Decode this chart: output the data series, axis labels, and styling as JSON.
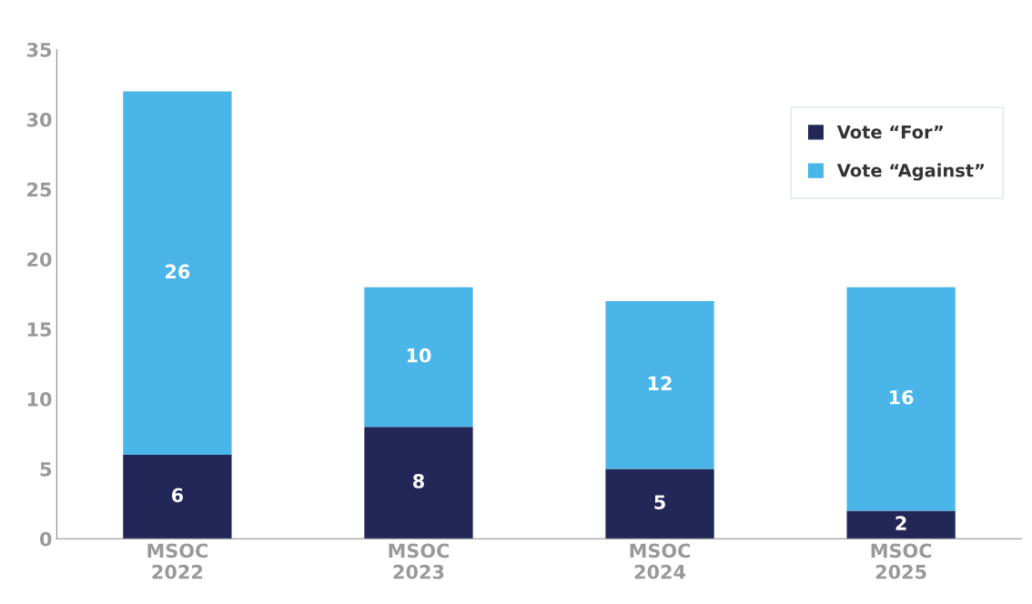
{
  "chart_data": {
    "type": "bar",
    "stacked": true,
    "categories": [
      "MSOC\n2022",
      "MSOC\n2023",
      "MSOC\n2024",
      "MSOC\n2025"
    ],
    "series": [
      {
        "name": "Vote “For”",
        "color": "#232757",
        "values": [
          6,
          8,
          5,
          2
        ]
      },
      {
        "name": "Vote “Against”",
        "color": "#4ab5e8",
        "values": [
          26,
          10,
          12,
          16
        ]
      }
    ],
    "ylim": [
      0,
      35
    ],
    "yticks": [
      0,
      5,
      10,
      15,
      20,
      25,
      30,
      35
    ],
    "grid": false,
    "legend": "top right",
    "data_labels": true
  }
}
